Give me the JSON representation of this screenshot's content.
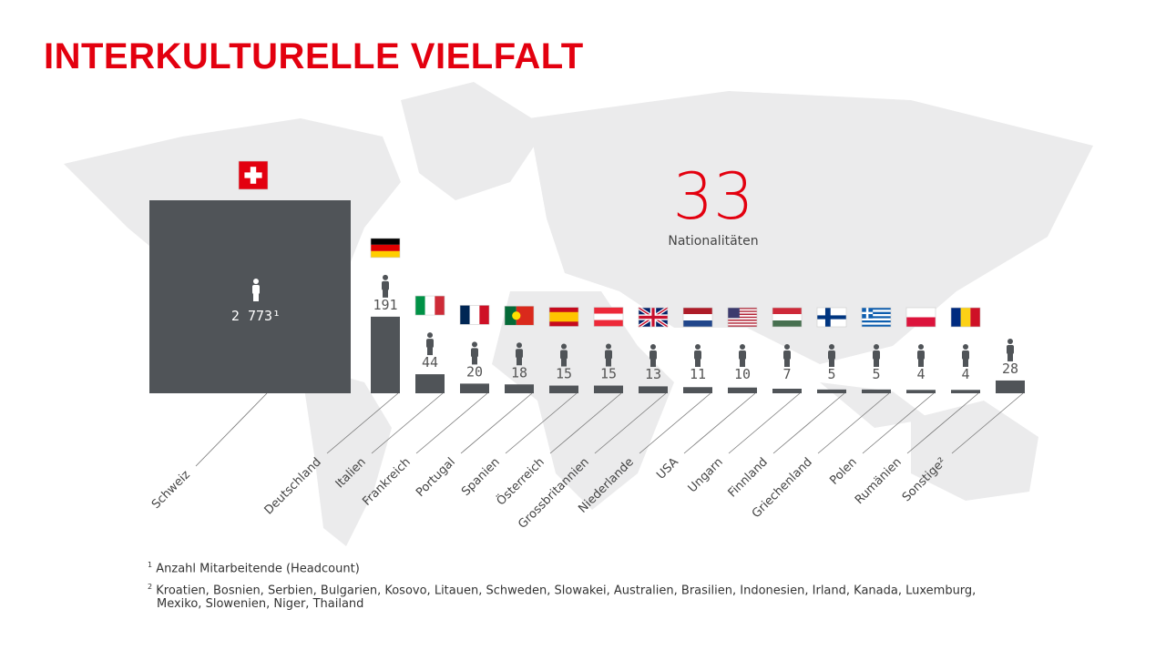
{
  "title": "INTERKULTURELLE VIELFALT",
  "highlight": {
    "value": "33",
    "label": "Nationalitäten"
  },
  "chart_data": {
    "type": "bar",
    "categories": [
      "Schweiz",
      "Deutschland",
      "Italien",
      "Frankreich",
      "Portugal",
      "Spanien",
      "Österreich",
      "Grossbritannien",
      "Niederlande",
      "USA",
      "Ungarn",
      "Finnland",
      "Griechenland",
      "Polen",
      "Rumänien",
      "Sonstige²"
    ],
    "values": [
      2773,
      191,
      44,
      20,
      18,
      15,
      15,
      13,
      11,
      10,
      7,
      5,
      5,
      4,
      4,
      28
    ],
    "value_labels": [
      "2 773¹",
      "191",
      "44",
      "20",
      "18",
      "15",
      "15",
      "13",
      "11",
      "10",
      "7",
      "5",
      "5",
      "4",
      "4",
      "28"
    ],
    "flags": [
      "ch",
      "de",
      "it",
      "fr",
      "pt",
      "es",
      "at",
      "gb",
      "nl",
      "us",
      "hu",
      "fi",
      "gr",
      "pl",
      "ro",
      ""
    ],
    "bar_color": "#505458",
    "accent_color": "#e3000f"
  },
  "footnotes": {
    "note1_mark": "1",
    "note1": "Anzahl Mitarbeitende (Headcount)",
    "note2_mark": "2",
    "note2": "Kroatien, Bosnien, Serbien, Bulgarien, Kosovo, Litauen, Schweden, Slowakei, Australien, Brasilien, Indonesien, Irland, Kanada, Luxemburg,",
    "note2_cont": "Mexiko, Slowenien, Niger, Thailand"
  }
}
